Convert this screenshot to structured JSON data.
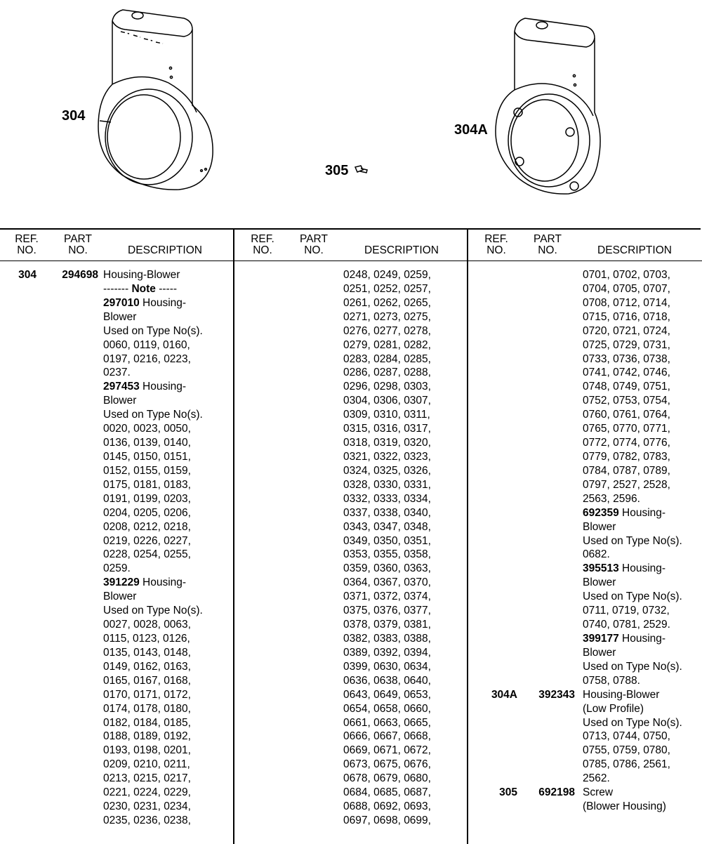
{
  "illustration": {
    "callouts": {
      "housing": "304",
      "screw": "305",
      "housing_low_profile": "304A"
    }
  },
  "table": {
    "header": {
      "ref_line1": "REF.",
      "ref_line2": "NO.",
      "part_line1": "PART",
      "part_line2": "NO.",
      "description": "DESCRIPTION"
    },
    "columns": [
      [
        {
          "ref": "304",
          "part": "294698",
          "text": "Housing-Blower"
        },
        {
          "pre": "------- ",
          "bold": "Note",
          "text": " -----"
        },
        {
          "bold": "297010",
          "text": " Housing-"
        },
        {
          "text": "Blower"
        },
        {
          "text": "Used on Type No(s)."
        },
        {
          "text": "0060, 0119, 0160,"
        },
        {
          "text": "0197, 0216, 0223,"
        },
        {
          "text": "0237."
        },
        {
          "bold": "297453",
          "text": " Housing-"
        },
        {
          "text": "Blower"
        },
        {
          "text": "Used on Type No(s)."
        },
        {
          "text": "0020, 0023, 0050,"
        },
        {
          "text": "0136, 0139, 0140,"
        },
        {
          "text": "0145, 0150, 0151,"
        },
        {
          "text": "0152, 0155, 0159,"
        },
        {
          "text": "0175, 0181, 0183,"
        },
        {
          "text": "0191, 0199, 0203,"
        },
        {
          "text": "0204, 0205, 0206,"
        },
        {
          "text": "0208, 0212, 0218,"
        },
        {
          "text": "0219, 0226, 0227,"
        },
        {
          "text": "0228, 0254, 0255,"
        },
        {
          "text": "0259."
        },
        {
          "bold": "391229",
          "text": " Housing-"
        },
        {
          "text": "Blower"
        },
        {
          "text": "Used on Type No(s)."
        },
        {
          "text": "0027, 0028, 0063,"
        },
        {
          "text": "0115, 0123, 0126,"
        },
        {
          "text": "0135, 0143, 0148,"
        },
        {
          "text": "0149, 0162, 0163,"
        },
        {
          "text": "0165, 0167, 0168,"
        },
        {
          "text": "0170, 0171, 0172,"
        },
        {
          "text": "0174, 0178, 0180,"
        },
        {
          "text": "0182, 0184, 0185,"
        },
        {
          "text": "0188, 0189, 0192,"
        },
        {
          "text": "0193, 0198, 0201,"
        },
        {
          "text": "0209, 0210, 0211,"
        },
        {
          "text": "0213, 0215, 0217,"
        },
        {
          "text": "0221, 0224, 0229,"
        },
        {
          "text": "0230, 0231, 0234,"
        },
        {
          "text": "0235, 0236, 0238,"
        }
      ],
      [
        {
          "text": "0248, 0249, 0259,"
        },
        {
          "text": "0251, 0252, 0257,"
        },
        {
          "text": "0261, 0262, 0265,"
        },
        {
          "text": "0271, 0273, 0275,"
        },
        {
          "text": "0276, 0277, 0278,"
        },
        {
          "text": "0279, 0281, 0282,"
        },
        {
          "text": "0283, 0284, 0285,"
        },
        {
          "text": "0286, 0287, 0288,"
        },
        {
          "text": "0296, 0298, 0303,"
        },
        {
          "text": "0304, 0306, 0307,"
        },
        {
          "text": "0309, 0310, 0311,"
        },
        {
          "text": "0315, 0316, 0317,"
        },
        {
          "text": "0318, 0319, 0320,"
        },
        {
          "text": "0321, 0322, 0323,"
        },
        {
          "text": "0324, 0325, 0326,"
        },
        {
          "text": "0328, 0330, 0331,"
        },
        {
          "text": "0332, 0333, 0334,"
        },
        {
          "text": "0337, 0338, 0340,"
        },
        {
          "text": "0343, 0347, 0348,"
        },
        {
          "text": "0349, 0350, 0351,"
        },
        {
          "text": "0353, 0355, 0358,"
        },
        {
          "text": "0359, 0360, 0363,"
        },
        {
          "text": "0364, 0367, 0370,"
        },
        {
          "text": "0371, 0372, 0374,"
        },
        {
          "text": "0375, 0376, 0377,"
        },
        {
          "text": "0378, 0379, 0381,"
        },
        {
          "text": "0382, 0383, 0388,"
        },
        {
          "text": "0389, 0392, 0394,"
        },
        {
          "text": "0399, 0630, 0634,"
        },
        {
          "text": "0636, 0638, 0640,"
        },
        {
          "text": "0643, 0649, 0653,"
        },
        {
          "text": "0654, 0658, 0660,"
        },
        {
          "text": "0661, 0663, 0665,"
        },
        {
          "text": "0666, 0667, 0668,"
        },
        {
          "text": "0669, 0671, 0672,"
        },
        {
          "text": "0673, 0675, 0676,"
        },
        {
          "text": "0678, 0679, 0680,"
        },
        {
          "text": "0684, 0685, 0687,"
        },
        {
          "text": "0688, 0692, 0693,"
        },
        {
          "text": "0697, 0698, 0699,"
        }
      ],
      [
        {
          "text": "0701, 0702, 0703,"
        },
        {
          "text": "0704, 0705, 0707,"
        },
        {
          "text": "0708, 0712, 0714,"
        },
        {
          "text": "0715, 0716, 0718,"
        },
        {
          "text": "0720, 0721, 0724,"
        },
        {
          "text": "0725, 0729, 0731,"
        },
        {
          "text": "0733, 0736, 0738,"
        },
        {
          "text": "0741, 0742, 0746,"
        },
        {
          "text": "0748, 0749, 0751,"
        },
        {
          "text": "0752, 0753, 0754,"
        },
        {
          "text": "0760, 0761, 0764,"
        },
        {
          "text": "0765, 0770, 0771,"
        },
        {
          "text": "0772, 0774, 0776,"
        },
        {
          "text": "0779, 0782, 0783,"
        },
        {
          "text": "0784, 0787, 0789,"
        },
        {
          "text": "0797, 2527, 2528,"
        },
        {
          "text": "2563, 2596."
        },
        {
          "bold": "692359",
          "text": " Housing-"
        },
        {
          "text": "Blower"
        },
        {
          "text": "Used on Type No(s)."
        },
        {
          "text": "0682."
        },
        {
          "bold": "395513",
          "text": " Housing-"
        },
        {
          "text": "Blower"
        },
        {
          "text": "Used on Type No(s)."
        },
        {
          "text": "0711, 0719, 0732,"
        },
        {
          "text": "0740, 0781, 2529."
        },
        {
          "bold": "399177",
          "text": " Housing-"
        },
        {
          "text": "Blower"
        },
        {
          "text": "Used on Type No(s)."
        },
        {
          "text": "0758, 0788."
        },
        {
          "ref": "304A",
          "part": "392343",
          "text": "Housing-Blower"
        },
        {
          "text": "(Low Profile)"
        },
        {
          "text": "Used on Type No(s)."
        },
        {
          "text": "0713, 0744, 0750,"
        },
        {
          "text": "0755, 0759, 0780,"
        },
        {
          "text": "0785, 0786, 2561,"
        },
        {
          "text": "2562."
        },
        {
          "ref": "305",
          "part": "692198",
          "text": "Screw"
        },
        {
          "text": "(Blower Housing)"
        }
      ]
    ]
  }
}
